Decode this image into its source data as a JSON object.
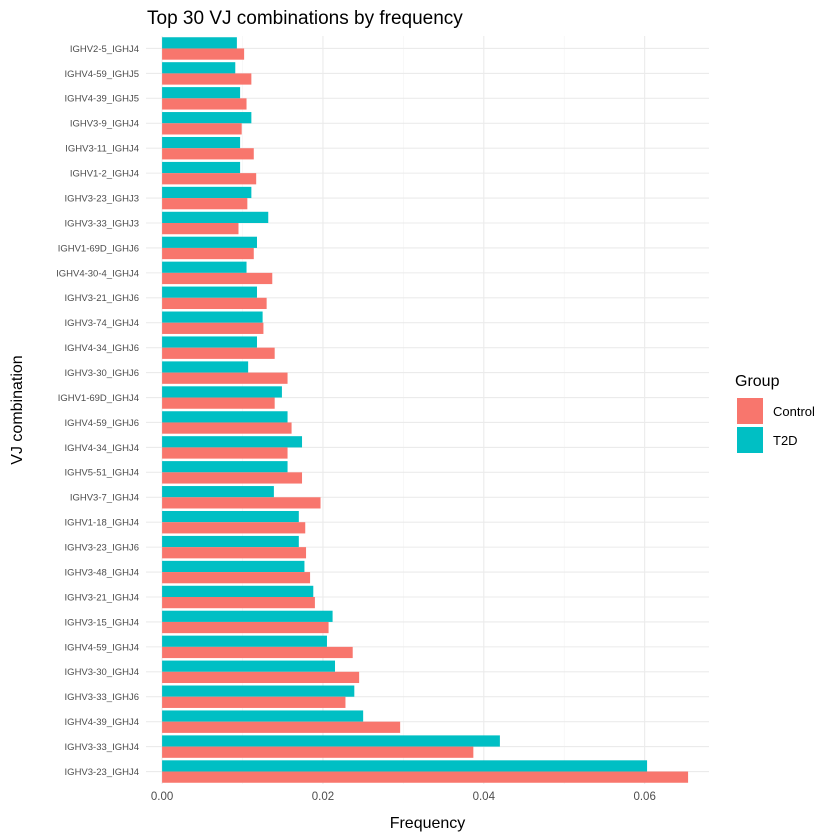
{
  "chart_data": {
    "type": "bar",
    "orientation": "horizontal",
    "title": "Top 30 VJ combinations by frequency",
    "xlabel": "Frequency",
    "ylabel": "VJ combination",
    "xlim": [
      -0.002,
      0.068
    ],
    "xticks": [
      0,
      0.02,
      0.04,
      0.06
    ],
    "xtick_labels": [
      "0.00",
      "0.02",
      "0.04",
      "0.06"
    ],
    "grid": true,
    "legend": {
      "title": "Group",
      "position": "right"
    },
    "categories": [
      "IGHV2-5_IGHJ4",
      "IGHV4-59_IGHJ5",
      "IGHV4-39_IGHJ5",
      "IGHV3-9_IGHJ4",
      "IGHV3-11_IGHJ4",
      "IGHV1-2_IGHJ4",
      "IGHV3-23_IGHJ3",
      "IGHV3-33_IGHJ3",
      "IGHV1-69D_IGHJ6",
      "IGHV4-30-4_IGHJ4",
      "IGHV3-21_IGHJ6",
      "IGHV3-74_IGHJ4",
      "IGHV4-34_IGHJ6",
      "IGHV3-30_IGHJ6",
      "IGHV1-69D_IGHJ4",
      "IGHV4-59_IGHJ6",
      "IGHV4-34_IGHJ4",
      "IGHV5-51_IGHJ4",
      "IGHV3-7_IGHJ4",
      "IGHV1-18_IGHJ4",
      "IGHV3-23_IGHJ6",
      "IGHV3-48_IGHJ4",
      "IGHV3-21_IGHJ4",
      "IGHV3-15_IGHJ4",
      "IGHV4-59_IGHJ4",
      "IGHV3-30_IGHJ4",
      "IGHV3-33_IGHJ6",
      "IGHV4-39_IGHJ4",
      "IGHV3-33_IGHJ4",
      "IGHV3-23_IGHJ4"
    ],
    "series": [
      {
        "name": "T2D",
        "color": "#00BFC4",
        "values": [
          0.0093,
          0.0091,
          0.0097,
          0.0111,
          0.0097,
          0.0097,
          0.0111,
          0.0132,
          0.0118,
          0.0105,
          0.0118,
          0.0125,
          0.0118,
          0.0107,
          0.0149,
          0.0156,
          0.0174,
          0.0156,
          0.0139,
          0.017,
          0.017,
          0.0177,
          0.0188,
          0.0212,
          0.0205,
          0.0215,
          0.0239,
          0.025,
          0.042,
          0.0603
        ]
      },
      {
        "name": "Control",
        "color": "#F8766D",
        "values": [
          0.0102,
          0.0111,
          0.0105,
          0.0099,
          0.0114,
          0.0117,
          0.0106,
          0.0095,
          0.0114,
          0.0137,
          0.013,
          0.0126,
          0.014,
          0.0156,
          0.014,
          0.0161,
          0.0156,
          0.0174,
          0.0197,
          0.0178,
          0.0179,
          0.0184,
          0.019,
          0.0207,
          0.0237,
          0.0245,
          0.0228,
          0.0296,
          0.0387,
          0.0654
        ]
      }
    ]
  }
}
